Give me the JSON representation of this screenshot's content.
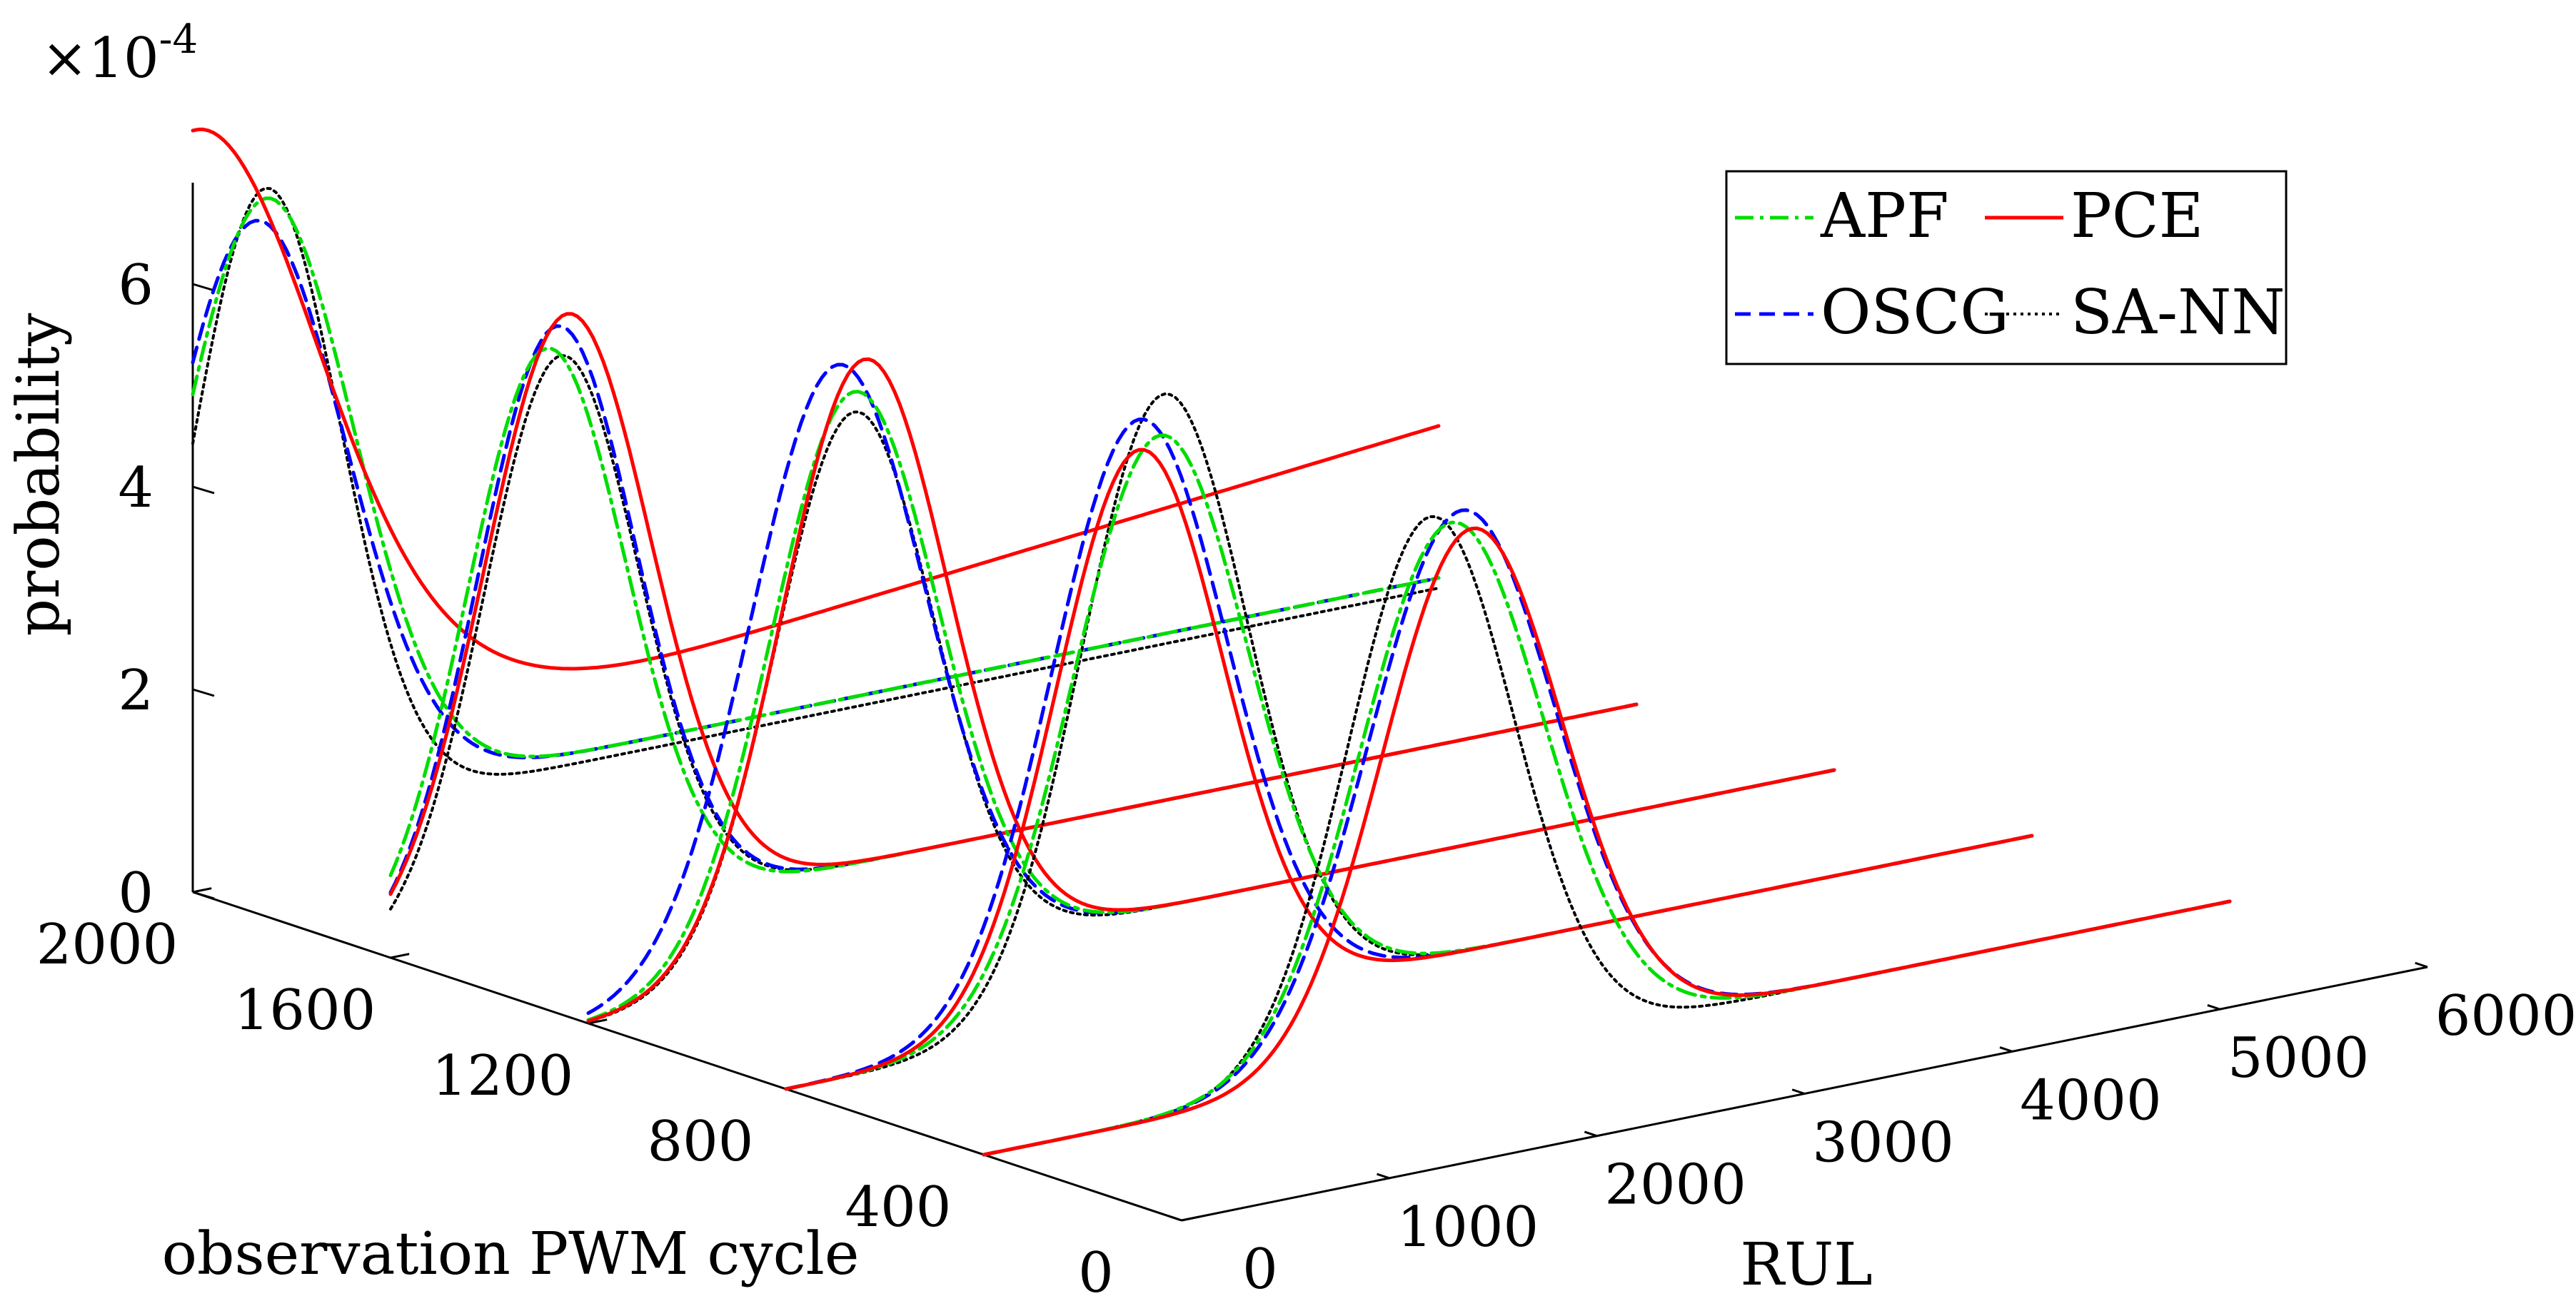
{
  "chart_data": {
    "type": "line",
    "title": "",
    "exponent": {
      "base": "×10",
      "power": "-4"
    },
    "xlabel": "observation PWM cycle",
    "ylabel": "RUL",
    "zlabel": "probability",
    "x_ticks": [
      "0",
      "400",
      "800",
      "1200",
      "1600",
      "2000"
    ],
    "y_ticks": [
      "0",
      "1000",
      "2000",
      "3000",
      "4000",
      "5000",
      "6000"
    ],
    "z_ticks": [
      "0",
      "2",
      "4",
      "6"
    ],
    "xlim": [
      0,
      2000
    ],
    "ylim": [
      0,
      6000
    ],
    "zlim": [
      0,
      7
    ],
    "legend": {
      "position": "top-right",
      "columns": 2
    },
    "series": [
      {
        "name": "APF",
        "color": "#00dd00",
        "dash": "dashdot",
        "width": 5
      },
      {
        "name": "PCE",
        "color": "#ff0000",
        "dash": "solid",
        "width": 5
      },
      {
        "name": "OSCG",
        "color": "#0000ff",
        "dash": "dashed",
        "width": 5
      },
      {
        "name": "SA-NN",
        "color": "#000000",
        "dash": "dotted",
        "width": 4
      }
    ],
    "slices": [
      {
        "observation_cycle": 2000,
        "rul_range": [
          0,
          6000
        ],
        "curves": {
          "APF": {
            "baseline": 0.6,
            "peaks": [
              {
                "mu": 350,
                "sigma": 420,
                "amp": 6.1
              }
            ]
          },
          "OSCG": {
            "baseline": 0.6,
            "peaks": [
              {
                "mu": 300,
                "sigma": 430,
                "amp": 5.9
              }
            ]
          },
          "SA-NN": {
            "baseline": 0.5,
            "peaks": [
              {
                "mu": 350,
                "sigma": 360,
                "amp": 6.3
              }
            ]
          },
          "PCE": {
            "baseline": 0.9,
            "peaks": [
              {
                "mu": 0,
                "sigma": 600,
                "amp": 6.6
              },
              {
                "mu": 1200,
                "sigma": 500,
                "amp": 0.25
              }
            ],
            "slope": 0.0002
          }
        }
      },
      {
        "observation_cycle": 1600,
        "rul_range": [
          0,
          6000
        ],
        "curves": {
          "APF": {
            "baseline": 0.0,
            "peaks": [
              {
                "mu": 750,
                "sigma": 380,
                "amp": 5.7
              }
            ]
          },
          "OSCG": {
            "baseline": 0.0,
            "peaks": [
              {
                "mu": 800,
                "sigma": 380,
                "amp": 5.9
              }
            ]
          },
          "SA-NN": {
            "baseline": 0.0,
            "peaks": [
              {
                "mu": 820,
                "sigma": 370,
                "amp": 5.6
              }
            ]
          },
          "PCE": {
            "baseline": 0.0,
            "peaks": [
              {
                "mu": 850,
                "sigma": 400,
                "amp": 6.0
              }
            ]
          }
        }
      },
      {
        "observation_cycle": 1200,
        "rul_range": [
          0,
          6000
        ],
        "curves": {
          "APF": {
            "baseline": 0.0,
            "peaks": [
              {
                "mu": 1280,
                "sigma": 400,
                "amp": 5.7
              }
            ]
          },
          "OSCG": {
            "baseline": 0.0,
            "peaks": [
              {
                "mu": 1200,
                "sigma": 420,
                "amp": 6.0
              }
            ]
          },
          "SA-NN": {
            "baseline": 0.0,
            "peaks": [
              {
                "mu": 1280,
                "sigma": 380,
                "amp": 5.5
              }
            ]
          },
          "PCE": {
            "baseline": 0.0,
            "peaks": [
              {
                "mu": 1330,
                "sigma": 400,
                "amp": 6.0
              }
            ]
          }
        }
      },
      {
        "observation_cycle": 800,
        "rul_range": [
          0,
          6000
        ],
        "curves": {
          "APF": {
            "baseline": 0.0,
            "peaks": [
              {
                "mu": 1800,
                "sigma": 420,
                "amp": 5.7
              }
            ]
          },
          "OSCG": {
            "baseline": 0.0,
            "peaks": [
              {
                "mu": 1700,
                "sigma": 420,
                "amp": 5.9
              }
            ]
          },
          "SA-NN": {
            "baseline": 0.0,
            "peaks": [
              {
                "mu": 1820,
                "sigma": 400,
                "amp": 6.1
              }
            ]
          },
          "PCE": {
            "baseline": 0.0,
            "peaks": [
              {
                "mu": 1700,
                "sigma": 400,
                "amp": 5.6
              }
            ]
          }
        }
      },
      {
        "observation_cycle": 400,
        "rul_range": [
          0,
          6000
        ],
        "curves": {
          "APF": {
            "baseline": 0.0,
            "peaks": [
              {
                "mu": 2250,
                "sigma": 440,
                "amp": 5.3
              }
            ]
          },
          "OSCG": {
            "baseline": 0.0,
            "peaks": [
              {
                "mu": 2300,
                "sigma": 450,
                "amp": 5.4
              }
            ]
          },
          "SA-NN": {
            "baseline": 0.0,
            "peaks": [
              {
                "mu": 2150,
                "sigma": 400,
                "amp": 5.4
              }
            ]
          },
          "PCE": {
            "baseline": 0.0,
            "peaks": [
              {
                "mu": 2350,
                "sigma": 430,
                "amp": 5.2
              }
            ]
          }
        }
      }
    ]
  }
}
